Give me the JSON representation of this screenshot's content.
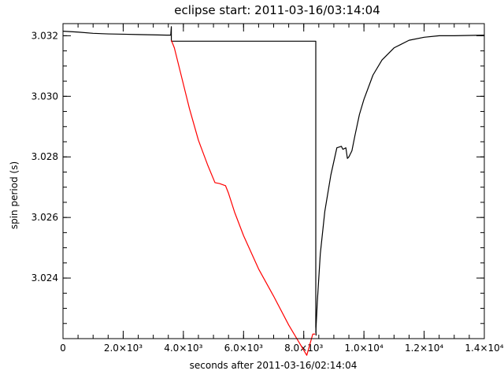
{
  "chart_data": {
    "type": "line",
    "title": "eclipse start: 2011-03-16/03:14:04",
    "xlabel": "seconds after 2011-03-16/02:14:04",
    "ylabel": "spin period (s)",
    "xlim": [
      0,
      14000
    ],
    "ylim": [
      3.022,
      3.0324
    ],
    "x_ticks": [
      {
        "value": 0,
        "label": "0"
      },
      {
        "value": 2000,
        "label": "2.0×10³"
      },
      {
        "value": 4000,
        "label": "4.0×10³"
      },
      {
        "value": 6000,
        "label": "6.0×10³"
      },
      {
        "value": 8000,
        "label": "8.0×10³"
      },
      {
        "value": 10000,
        "label": "1.0×10⁴"
      },
      {
        "value": 12000,
        "label": "1.2×10⁴"
      },
      {
        "value": 14000,
        "label": "1.4×10⁴"
      }
    ],
    "y_ticks": [
      {
        "value": 3.024,
        "label": "3.024"
      },
      {
        "value": 3.026,
        "label": "3.026"
      },
      {
        "value": 3.028,
        "label": "3.028"
      },
      {
        "value": 3.03,
        "label": "3.030"
      },
      {
        "value": 3.032,
        "label": "3.032"
      }
    ],
    "x_minor_step": 500,
    "y_minor_step": 0.0005,
    "grid": false,
    "series": [
      {
        "color": "#000000",
        "x": [
          0,
          500,
          1000,
          1500,
          2000,
          2500,
          3000,
          3450,
          3580,
          3600,
          3600,
          3620,
          8400,
          8400,
          8410
        ],
        "y": [
          3.03215,
          3.03212,
          3.03208,
          3.03206,
          3.03205,
          3.03204,
          3.03203,
          3.03202,
          3.03202,
          3.0323,
          3.03182,
          3.03182,
          3.03182,
          3.0224,
          3.0221
        ]
      },
      {
        "color": "#ff0000",
        "x": [
          3600,
          3700,
          3900,
          4200,
          4500,
          4800,
          5050,
          5200,
          5400,
          5500,
          5700,
          6000,
          6500,
          7000,
          7500,
          7800,
          8100,
          8300,
          8380
        ],
        "y": [
          3.03185,
          3.0316,
          3.0308,
          3.0296,
          3.02855,
          3.02775,
          3.02715,
          3.02712,
          3.02705,
          3.0268,
          3.02618,
          3.0254,
          3.0243,
          3.0234,
          3.02245,
          3.02195,
          3.02145,
          3.02215,
          3.02215
        ]
      },
      {
        "color": "#000000",
        "x": [
          8400,
          8450,
          8550,
          8700,
          8900,
          9100,
          9250,
          9300,
          9400,
          9450,
          9500,
          9550,
          9600,
          9700,
          9850,
          10000,
          10300,
          10600,
          11000,
          11500,
          12000,
          12500,
          13000,
          13500,
          14000
        ],
        "y": [
          3.0222,
          3.0232,
          3.0248,
          3.0262,
          3.0274,
          3.0283,
          3.02835,
          3.02825,
          3.0283,
          3.02795,
          3.028,
          3.0281,
          3.0282,
          3.0287,
          3.0294,
          3.0299,
          3.0307,
          3.0312,
          3.0316,
          3.03185,
          3.03195,
          3.032,
          3.032,
          3.03201,
          3.03202
        ]
      }
    ]
  }
}
